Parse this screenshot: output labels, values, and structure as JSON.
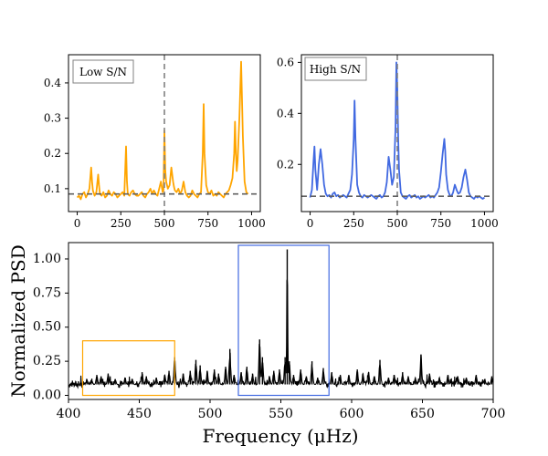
{
  "chart_data": [
    {
      "type": "line",
      "panel": "top-left",
      "label": "Low S/N",
      "color": "#FFA500",
      "xlim": [
        -50,
        1050
      ],
      "ylim": [
        0.035,
        0.48
      ],
      "xticks": [
        0,
        250,
        500,
        750,
        1000
      ],
      "xtick_labels": [
        "0",
        "250",
        "500",
        "750",
        "1000"
      ],
      "yticks": [
        0.1,
        0.2,
        0.3,
        0.4
      ],
      "ytick_labels": [
        "0.1",
        "0.2",
        "0.3",
        "0.4"
      ],
      "vline_x": 500,
      "hline_y": 0.085,
      "series": [
        {
          "name": "Low S/N",
          "x": [
            0,
            10,
            20,
            30,
            40,
            50,
            60,
            70,
            80,
            85,
            90,
            100,
            110,
            120,
            125,
            130,
            140,
            150,
            160,
            170,
            180,
            190,
            200,
            210,
            220,
            230,
            240,
            250,
            260,
            270,
            280,
            285,
            290,
            300,
            310,
            320,
            330,
            340,
            350,
            360,
            370,
            380,
            390,
            400,
            410,
            420,
            430,
            440,
            450,
            460,
            470,
            480,
            490,
            495,
            500,
            505,
            510,
            520,
            530,
            540,
            550,
            555,
            560,
            570,
            580,
            590,
            600,
            610,
            620,
            630,
            640,
            650,
            660,
            670,
            680,
            690,
            700,
            710,
            720,
            725,
            730,
            740,
            750,
            760,
            770,
            780,
            790,
            800,
            810,
            820,
            830,
            840,
            850,
            860,
            870,
            880,
            890,
            900,
            905,
            910,
            915,
            920,
            930,
            940,
            945,
            950,
            955,
            960,
            970,
            980
          ],
          "y": [
            0.075,
            0.08,
            0.07,
            0.085,
            0.09,
            0.075,
            0.085,
            0.1,
            0.16,
            0.12,
            0.095,
            0.08,
            0.09,
            0.14,
            0.11,
            0.085,
            0.08,
            0.09,
            0.075,
            0.08,
            0.095,
            0.085,
            0.08,
            0.09,
            0.085,
            0.075,
            0.08,
            0.085,
            0.09,
            0.08,
            0.22,
            0.12,
            0.085,
            0.08,
            0.09,
            0.095,
            0.085,
            0.08,
            0.08,
            0.085,
            0.09,
            0.08,
            0.075,
            0.085,
            0.09,
            0.1,
            0.085,
            0.095,
            0.085,
            0.08,
            0.1,
            0.12,
            0.09,
            0.095,
            0.265,
            0.15,
            0.12,
            0.1,
            0.11,
            0.16,
            0.12,
            0.105,
            0.095,
            0.09,
            0.1,
            0.085,
            0.095,
            0.12,
            0.09,
            0.08,
            0.075,
            0.08,
            0.095,
            0.085,
            0.08,
            0.075,
            0.085,
            0.09,
            0.2,
            0.34,
            0.2,
            0.11,
            0.09,
            0.085,
            0.095,
            0.08,
            0.085,
            0.08,
            0.09,
            0.085,
            0.08,
            0.075,
            0.085,
            0.09,
            0.095,
            0.11,
            0.13,
            0.2,
            0.29,
            0.2,
            0.15,
            0.18,
            0.3,
            0.46,
            0.35,
            0.25,
            0.18,
            0.12,
            0.09,
            0.085
          ]
        }
      ]
    },
    {
      "type": "line",
      "panel": "top-right",
      "label": "High S/N",
      "color": "#4169E1",
      "xlim": [
        -50,
        1050
      ],
      "ylim": [
        0.015,
        0.63
      ],
      "xticks": [
        0,
        250,
        500,
        750,
        1000
      ],
      "xtick_labels": [
        "0",
        "250",
        "500",
        "750",
        "1000"
      ],
      "yticks": [
        0.2,
        0.4,
        0.6
      ],
      "ytick_labels": [
        "0.2",
        "0.4",
        "0.6"
      ],
      "vline_x": 500,
      "hline_y": 0.075,
      "series": [
        {
          "name": "High S/N",
          "x": [
            0,
            10,
            20,
            25,
            30,
            40,
            50,
            60,
            70,
            80,
            90,
            100,
            110,
            120,
            130,
            140,
            150,
            160,
            170,
            180,
            190,
            200,
            210,
            220,
            230,
            240,
            250,
            255,
            260,
            270,
            280,
            290,
            300,
            310,
            320,
            330,
            340,
            350,
            360,
            370,
            380,
            390,
            400,
            410,
            420,
            430,
            440,
            450,
            460,
            470,
            480,
            490,
            495,
            500,
            505,
            510,
            520,
            530,
            540,
            550,
            560,
            570,
            580,
            590,
            600,
            610,
            620,
            630,
            640,
            650,
            660,
            670,
            680,
            690,
            700,
            710,
            720,
            730,
            740,
            750,
            760,
            770,
            775,
            780,
            790,
            800,
            810,
            820,
            830,
            840,
            850,
            860,
            870,
            880,
            890,
            900,
            910,
            920,
            930,
            940,
            950,
            960,
            970,
            980,
            990,
            1000
          ],
          "y": [
            0.07,
            0.1,
            0.22,
            0.27,
            0.18,
            0.1,
            0.2,
            0.26,
            0.2,
            0.12,
            0.085,
            0.075,
            0.08,
            0.07,
            0.085,
            0.09,
            0.075,
            0.08,
            0.07,
            0.075,
            0.08,
            0.075,
            0.07,
            0.085,
            0.1,
            0.16,
            0.3,
            0.45,
            0.3,
            0.12,
            0.09,
            0.075,
            0.07,
            0.08,
            0.075,
            0.07,
            0.075,
            0.08,
            0.075,
            0.07,
            0.065,
            0.075,
            0.08,
            0.07,
            0.075,
            0.09,
            0.13,
            0.23,
            0.18,
            0.12,
            0.15,
            0.35,
            0.6,
            0.5,
            0.3,
            0.18,
            0.09,
            0.075,
            0.07,
            0.065,
            0.075,
            0.08,
            0.07,
            0.075,
            0.08,
            0.07,
            0.075,
            0.065,
            0.07,
            0.075,
            0.07,
            0.075,
            0.08,
            0.07,
            0.075,
            0.07,
            0.08,
            0.09,
            0.11,
            0.17,
            0.24,
            0.3,
            0.25,
            0.16,
            0.1,
            0.08,
            0.075,
            0.09,
            0.12,
            0.1,
            0.085,
            0.09,
            0.11,
            0.15,
            0.18,
            0.14,
            0.09,
            0.075,
            0.07,
            0.065,
            0.075,
            0.07,
            0.075,
            0.07,
            0.065,
            0.07
          ]
        }
      ]
    },
    {
      "type": "line",
      "panel": "bottom",
      "color": "#000000",
      "xlabel": "Frequency ($\\mu$Hz)",
      "xlabel_display": "Frequency (μHz)",
      "ylabel": "Normalized PSD",
      "xlim": [
        400,
        700
      ],
      "ylim": [
        -0.03,
        1.12
      ],
      "xticks": [
        400,
        450,
        500,
        550,
        600,
        650,
        700
      ],
      "xtick_labels": [
        "400",
        "450",
        "500",
        "550",
        "600",
        "650",
        "700"
      ],
      "yticks": [
        0.0,
        0.25,
        0.5,
        0.75,
        1.0
      ],
      "ytick_labels": [
        "0.00",
        "0.25",
        "0.50",
        "0.75",
        "1.00"
      ],
      "highlight_boxes": [
        {
          "name": "Low S/N window",
          "color": "#FFA500",
          "x_range": [
            410,
            475
          ],
          "y_range": [
            0.0,
            0.4
          ]
        },
        {
          "name": "High S/N window",
          "color": "#4169E1",
          "x_range": [
            520,
            584
          ],
          "y_range": [
            0.0,
            1.1
          ]
        }
      ],
      "series": [
        {
          "name": "PSD",
          "baseline": 0.08,
          "peaks": [
            {
              "x": 413,
              "y": 0.12
            },
            {
              "x": 416,
              "y": 0.11
            },
            {
              "x": 420,
              "y": 0.15
            },
            {
              "x": 423,
              "y": 0.14
            },
            {
              "x": 428,
              "y": 0.16
            },
            {
              "x": 433,
              "y": 0.12
            },
            {
              "x": 440,
              "y": 0.13
            },
            {
              "x": 445,
              "y": 0.12
            },
            {
              "x": 452,
              "y": 0.17
            },
            {
              "x": 455,
              "y": 0.14
            },
            {
              "x": 462,
              "y": 0.13
            },
            {
              "x": 468,
              "y": 0.15
            },
            {
              "x": 471,
              "y": 0.18
            },
            {
              "x": 475,
              "y": 0.28
            },
            {
              "x": 481,
              "y": 0.16
            },
            {
              "x": 486,
              "y": 0.18
            },
            {
              "x": 490,
              "y": 0.26
            },
            {
              "x": 493,
              "y": 0.22
            },
            {
              "x": 498,
              "y": 0.18
            },
            {
              "x": 503,
              "y": 0.19
            },
            {
              "x": 506,
              "y": 0.16
            },
            {
              "x": 511,
              "y": 0.21
            },
            {
              "x": 514,
              "y": 0.34
            },
            {
              "x": 517,
              "y": 0.15
            },
            {
              "x": 522,
              "y": 0.17
            },
            {
              "x": 526,
              "y": 0.21
            },
            {
              "x": 530,
              "y": 0.16
            },
            {
              "x": 535,
              "y": 0.41
            },
            {
              "x": 537,
              "y": 0.28
            },
            {
              "x": 542,
              "y": 0.14
            },
            {
              "x": 545,
              "y": 0.18
            },
            {
              "x": 549,
              "y": 0.19
            },
            {
              "x": 553,
              "y": 0.28
            },
            {
              "x": 554.5,
              "y": 1.07
            },
            {
              "x": 556,
              "y": 0.25
            },
            {
              "x": 559,
              "y": 0.15
            },
            {
              "x": 564,
              "y": 0.19
            },
            {
              "x": 568,
              "y": 0.14
            },
            {
              "x": 572,
              "y": 0.25
            },
            {
              "x": 576,
              "y": 0.13
            },
            {
              "x": 580,
              "y": 0.2
            },
            {
              "x": 586,
              "y": 0.17
            },
            {
              "x": 592,
              "y": 0.15
            },
            {
              "x": 598,
              "y": 0.15
            },
            {
              "x": 604,
              "y": 0.19
            },
            {
              "x": 608,
              "y": 0.16
            },
            {
              "x": 612,
              "y": 0.17
            },
            {
              "x": 616,
              "y": 0.14
            },
            {
              "x": 620,
              "y": 0.26
            },
            {
              "x": 626,
              "y": 0.13
            },
            {
              "x": 630,
              "y": 0.15
            },
            {
              "x": 636,
              "y": 0.17
            },
            {
              "x": 640,
              "y": 0.14
            },
            {
              "x": 645,
              "y": 0.13
            },
            {
              "x": 649,
              "y": 0.3
            },
            {
              "x": 655,
              "y": 0.16
            },
            {
              "x": 662,
              "y": 0.13
            },
            {
              "x": 668,
              "y": 0.15
            },
            {
              "x": 675,
              "y": 0.14
            },
            {
              "x": 681,
              "y": 0.13
            },
            {
              "x": 688,
              "y": 0.15
            },
            {
              "x": 694,
              "y": 0.12
            },
            {
              "x": 699,
              "y": 0.14
            }
          ]
        }
      ]
    }
  ]
}
